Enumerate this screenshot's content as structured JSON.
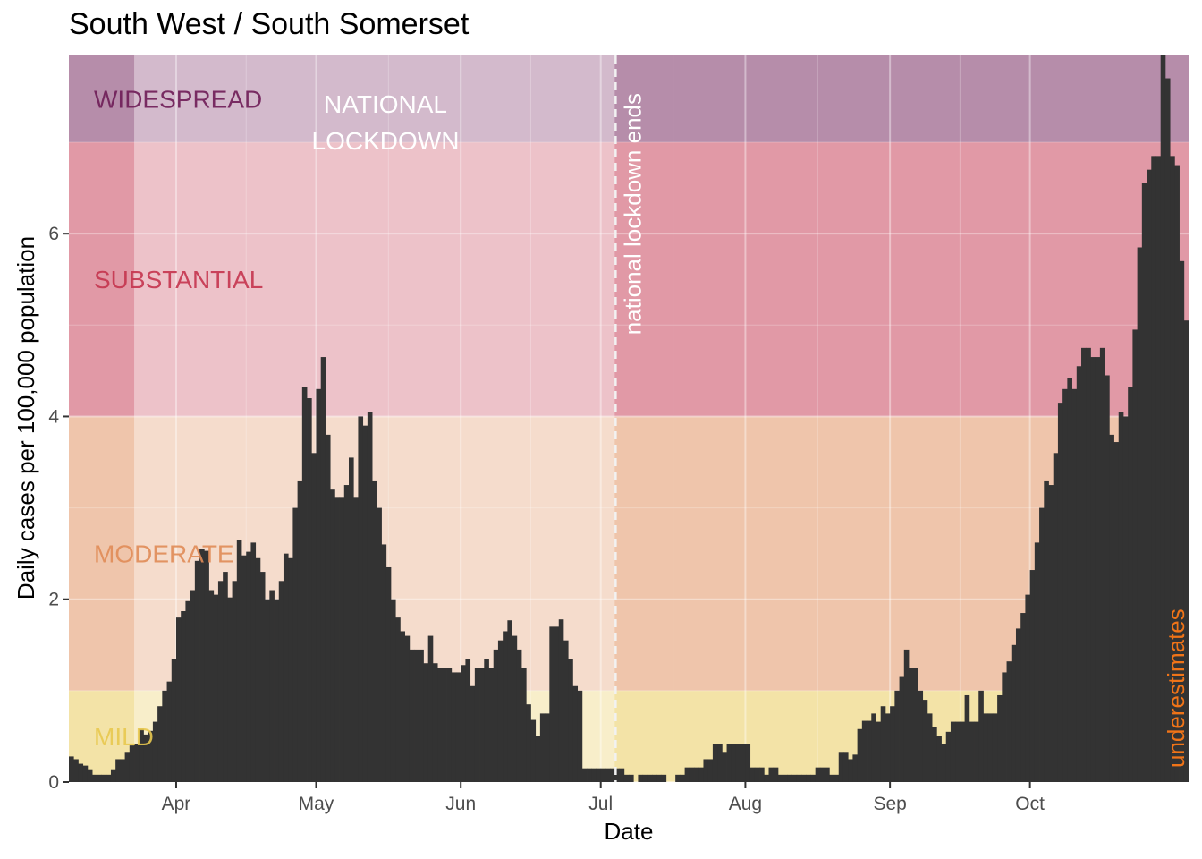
{
  "chart_data": {
    "type": "bar",
    "title": "South West / South Somerset",
    "xlabel": "Date",
    "ylabel": "Daily cases per 100,000 population",
    "x_start": "2020-03-09",
    "ylim": [
      0,
      7.95
    ],
    "y_ticks": [
      "0",
      "2",
      "4",
      "6"
    ],
    "y_tick_values": [
      0,
      2,
      4,
      6
    ],
    "x_ticks": [
      {
        "date": "2020-04-01",
        "label": "Apr"
      },
      {
        "date": "2020-05-01",
        "label": "May"
      },
      {
        "date": "2020-06-01",
        "label": "Jun"
      },
      {
        "date": "2020-07-01",
        "label": "Jul"
      },
      {
        "date": "2020-08-01",
        "label": "Aug"
      },
      {
        "date": "2020-09-01",
        "label": "Sep"
      },
      {
        "date": "2020-10-01",
        "label": "Oct"
      }
    ],
    "bands": [
      {
        "label": "MILD",
        "from": 0,
        "to": 1,
        "color": "#e8c84f"
      },
      {
        "label": "MODERATE",
        "from": 1,
        "to": 4,
        "color": "#e08b57"
      },
      {
        "label": "SUBSTANTIAL",
        "from": 4,
        "to": 7,
        "color": "#c4344e"
      },
      {
        "label": "WIDESPREAD",
        "from": 7,
        "to": 7.95,
        "color": "#6e1c56"
      }
    ],
    "lockdown": {
      "label_line1": "NATIONAL",
      "label_line2": "LOCKDOWN",
      "start": "2020-03-23",
      "end": "2020-07-04"
    },
    "lockdown_end_label": "national lockdown ends",
    "underestimates_label": "underestimates",
    "values": [
      0.28,
      0.25,
      0.2,
      0.18,
      0.14,
      0.08,
      0.08,
      0.08,
      0.08,
      0.14,
      0.25,
      0.25,
      0.33,
      0.4,
      0.42,
      0.58,
      0.52,
      0.56,
      0.66,
      0.83,
      1.0,
      1.1,
      1.35,
      1.8,
      1.87,
      1.98,
      2.1,
      2.42,
      2.55,
      2.53,
      2.1,
      2.05,
      2.2,
      2.3,
      2.02,
      2.2,
      2.65,
      2.48,
      2.52,
      2.62,
      2.45,
      2.3,
      2.0,
      2.1,
      2.0,
      2.2,
      2.5,
      2.45,
      3.0,
      3.3,
      4.32,
      4.2,
      3.6,
      4.3,
      4.65,
      3.8,
      3.2,
      3.12,
      3.12,
      3.25,
      3.55,
      3.12,
      4.0,
      3.9,
      4.05,
      3.3,
      3.0,
      2.6,
      2.35,
      2.0,
      1.8,
      1.65,
      1.6,
      1.45,
      1.45,
      1.45,
      1.3,
      1.6,
      1.3,
      1.25,
      1.25,
      1.25,
      1.2,
      1.2,
      1.28,
      1.35,
      1.05,
      1.25,
      1.25,
      1.35,
      1.25,
      1.45,
      1.55,
      1.65,
      1.77,
      1.6,
      1.45,
      1.25,
      0.85,
      0.68,
      0.5,
      0.75,
      0.75,
      1.7,
      1.7,
      1.78,
      1.55,
      1.35,
      1.05,
      1.0,
      0.15,
      0.15,
      0.15,
      0.15,
      0.15,
      0.15,
      0.15,
      0.15,
      0.15,
      0.08,
      0.08,
      0.0,
      0.08,
      0.08,
      0.08,
      0.08,
      0.08,
      0.08,
      0.0,
      0.0,
      0.08,
      0.08,
      0.16,
      0.16,
      0.16,
      0.16,
      0.25,
      0.25,
      0.42,
      0.42,
      0.33,
      0.42,
      0.42,
      0.42,
      0.42,
      0.42,
      0.16,
      0.16,
      0.16,
      0.08,
      0.16,
      0.16,
      0.08,
      0.08,
      0.08,
      0.08,
      0.08,
      0.08,
      0.08,
      0.08,
      0.16,
      0.16,
      0.16,
      0.08,
      0.08,
      0.33,
      0.33,
      0.25,
      0.3,
      0.58,
      0.67,
      0.67,
      0.75,
      0.66,
      0.83,
      0.75,
      0.83,
      1.0,
      1.15,
      1.45,
      1.25,
      1.25,
      1.0,
      0.9,
      0.75,
      0.6,
      0.5,
      0.42,
      0.55,
      0.66,
      0.66,
      0.66,
      0.95,
      0.66,
      0.66,
      1.0,
      0.75,
      0.75,
      0.75,
      0.95,
      1.2,
      1.32,
      1.5,
      1.68,
      1.85,
      2.05,
      2.32,
      2.62,
      3.0,
      3.3,
      3.25,
      3.6,
      4.15,
      4.3,
      4.42,
      4.3,
      4.55,
      4.75,
      4.75,
      4.65,
      4.65,
      4.75,
      4.45,
      3.8,
      3.72,
      4.05,
      4.0,
      4.32,
      4.95,
      5.85,
      6.55,
      6.7,
      6.85,
      6.85,
      7.95,
      7.7,
      6.85,
      6.75,
      5.7,
      5.05
    ]
  }
}
